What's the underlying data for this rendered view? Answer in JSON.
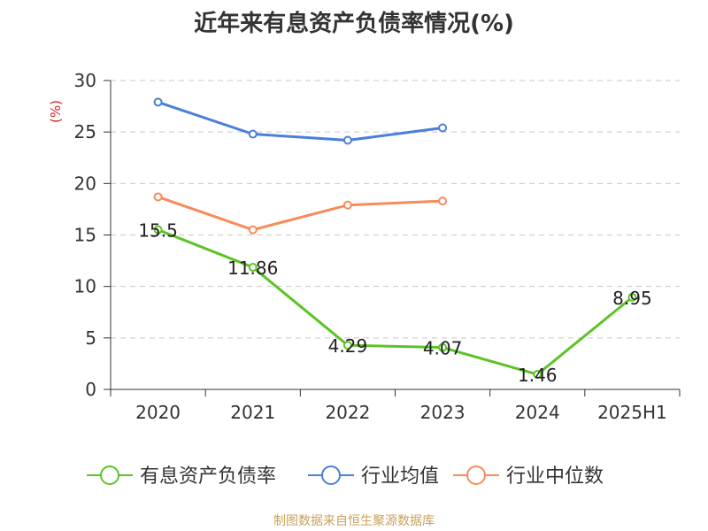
{
  "source_note": "制图数据来自恒生聚源数据库",
  "chart_data": {
    "type": "line",
    "title": "近年来有息资产负债率情况(%)",
    "ylabel": "(%)",
    "xlabel": "",
    "categories": [
      "2020",
      "2021",
      "2022",
      "2023",
      "2024",
      "2025H1"
    ],
    "ylim": [
      0,
      30
    ],
    "yticks": [
      0,
      5,
      10,
      15,
      20,
      25,
      30
    ],
    "grid": true,
    "legend_position": "bottom",
    "series": [
      {
        "name": "有息资产负债率",
        "color": "#5cc326",
        "values": [
          15.5,
          11.86,
          4.29,
          4.07,
          1.46,
          8.95
        ],
        "data_labels": [
          "15.5",
          "11.86",
          "4.29",
          "4.07",
          "1.46",
          "8.95"
        ]
      },
      {
        "name": "行业均值",
        "color": "#4a7fdb",
        "values": [
          27.9,
          24.8,
          24.2,
          25.4,
          null,
          null
        ]
      },
      {
        "name": "行业中位数",
        "color": "#f78b5a",
        "values": [
          18.7,
          15.5,
          17.9,
          18.3,
          null,
          null
        ]
      }
    ]
  }
}
